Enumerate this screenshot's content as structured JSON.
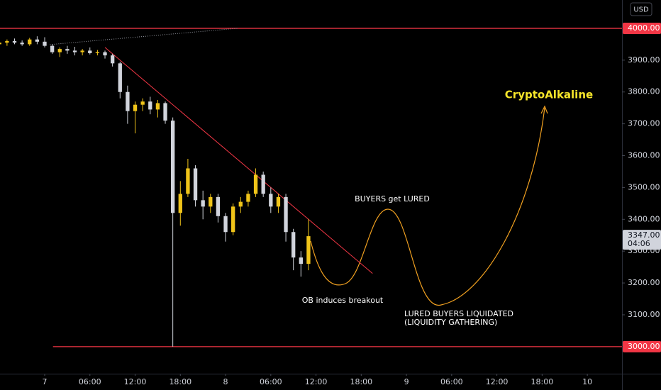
{
  "chart_data": {
    "type": "candlestick",
    "currency": "USD",
    "x": [
      -6,
      -5,
      -4,
      -3,
      -2,
      -1,
      0,
      1,
      2,
      3,
      4,
      5,
      6,
      7,
      8,
      9,
      10,
      11,
      12,
      13,
      14,
      15,
      16,
      17,
      18,
      19,
      20,
      21,
      22,
      23,
      24,
      25,
      26,
      27,
      28,
      29,
      30,
      31,
      32,
      33,
      34,
      35
    ],
    "open": [
      3950,
      3955,
      3960,
      3955,
      3950,
      3965,
      3958,
      3945,
      3925,
      3935,
      3930,
      3925,
      3930,
      3922,
      3925,
      3915,
      3890,
      3800,
      3740,
      3760,
      3770,
      3745,
      3765,
      3710,
      3420,
      3480,
      3560,
      3460,
      3440,
      3470,
      3410,
      3360,
      3440,
      3455,
      3480,
      3540,
      3480,
      3440,
      3470,
      3360,
      3280,
      3260
    ],
    "high": [
      3960,
      3965,
      3968,
      3962,
      3970,
      3975,
      3972,
      3950,
      3940,
      3945,
      3942,
      3935,
      3940,
      3932,
      3930,
      3920,
      3895,
      3820,
      3770,
      3780,
      3785,
      3775,
      3770,
      3720,
      3520,
      3590,
      3570,
      3490,
      3480,
      3480,
      3420,
      3450,
      3470,
      3490,
      3560,
      3550,
      3500,
      3480,
      3480,
      3370,
      3300,
      3400
    ],
    "low": [
      3940,
      3945,
      3950,
      3945,
      3945,
      3950,
      3940,
      3920,
      3910,
      3920,
      3915,
      3915,
      3918,
      3915,
      3905,
      3880,
      3780,
      3700,
      3670,
      3740,
      3730,
      3720,
      3700,
      3000,
      3380,
      3470,
      3440,
      3400,
      3420,
      3390,
      3330,
      3350,
      3420,
      3440,
      3470,
      3470,
      3420,
      3420,
      3330,
      3240,
      3220,
      3240
    ],
    "close": [
      3955,
      3960,
      3955,
      3950,
      3965,
      3958,
      3945,
      3925,
      3935,
      3930,
      3925,
      3930,
      3922,
      3925,
      3915,
      3890,
      3800,
      3740,
      3760,
      3770,
      3745,
      3765,
      3710,
      3420,
      3480,
      3560,
      3460,
      3440,
      3470,
      3410,
      3360,
      3440,
      3455,
      3480,
      3540,
      3480,
      3440,
      3470,
      3360,
      3280,
      3260,
      3347
    ],
    "up_color": "#f0c419",
    "down_color": "#d1d4dc",
    "xlim": [
      -5.93,
      76.6
    ],
    "ylim": [
      2915,
      4089
    ],
    "xticks": [
      {
        "value": 0,
        "label": "7"
      },
      {
        "value": 6,
        "label": "06:00"
      },
      {
        "value": 12,
        "label": "12:00"
      },
      {
        "value": 18,
        "label": "18:00"
      },
      {
        "value": 24,
        "label": "8"
      },
      {
        "value": 30,
        "label": "06:00"
      },
      {
        "value": 36,
        "label": "12:00"
      },
      {
        "value": 42,
        "label": "18:00"
      },
      {
        "value": 48,
        "label": "9"
      },
      {
        "value": 54,
        "label": "06:00"
      },
      {
        "value": 60,
        "label": "12:00"
      },
      {
        "value": 66,
        "label": "18:00"
      },
      {
        "value": 72,
        "label": "10"
      }
    ],
    "yticks": [
      {
        "value": 3100,
        "label": "3100.00"
      },
      {
        "value": 3200,
        "label": "3200.00"
      },
      {
        "value": 3300,
        "label": "3300.00"
      },
      {
        "value": 3400,
        "label": "3400.00"
      },
      {
        "value": 3500,
        "label": "3500.00"
      },
      {
        "value": 3600,
        "label": "3600.00"
      },
      {
        "value": 3700,
        "label": "3700.00"
      },
      {
        "value": 3800,
        "label": "3800.00"
      },
      {
        "value": 3900,
        "label": "3900.00"
      }
    ],
    "hlines": [
      {
        "value": 4000,
        "label": "4000.00",
        "x_start": -5.93
      },
      {
        "value": 3000,
        "label": "3000.00",
        "x_start": 1.1
      }
    ],
    "hline_color": "#f23645",
    "trendline": {
      "x": [
        8,
        43.5
      ],
      "y": [
        3940,
        3230
      ],
      "color": "#f23645"
    },
    "dotted_line": {
      "x": [
        0.7,
        25.6
      ],
      "y": [
        3949,
        4000
      ],
      "color": "#9598a1"
    },
    "last_price": {
      "value": 3347,
      "label": "3347.00",
      "countdown": "04:06"
    },
    "annotations": {
      "brand": "CryptoAlkaline",
      "lured": "BUYERS get LURED",
      "ob": "OB induces breakout",
      "liquidated_1": "LURED BUYERS LIQUIDATED",
      "liquidated_2": "(LIQUIDITY GATHERING)"
    }
  }
}
